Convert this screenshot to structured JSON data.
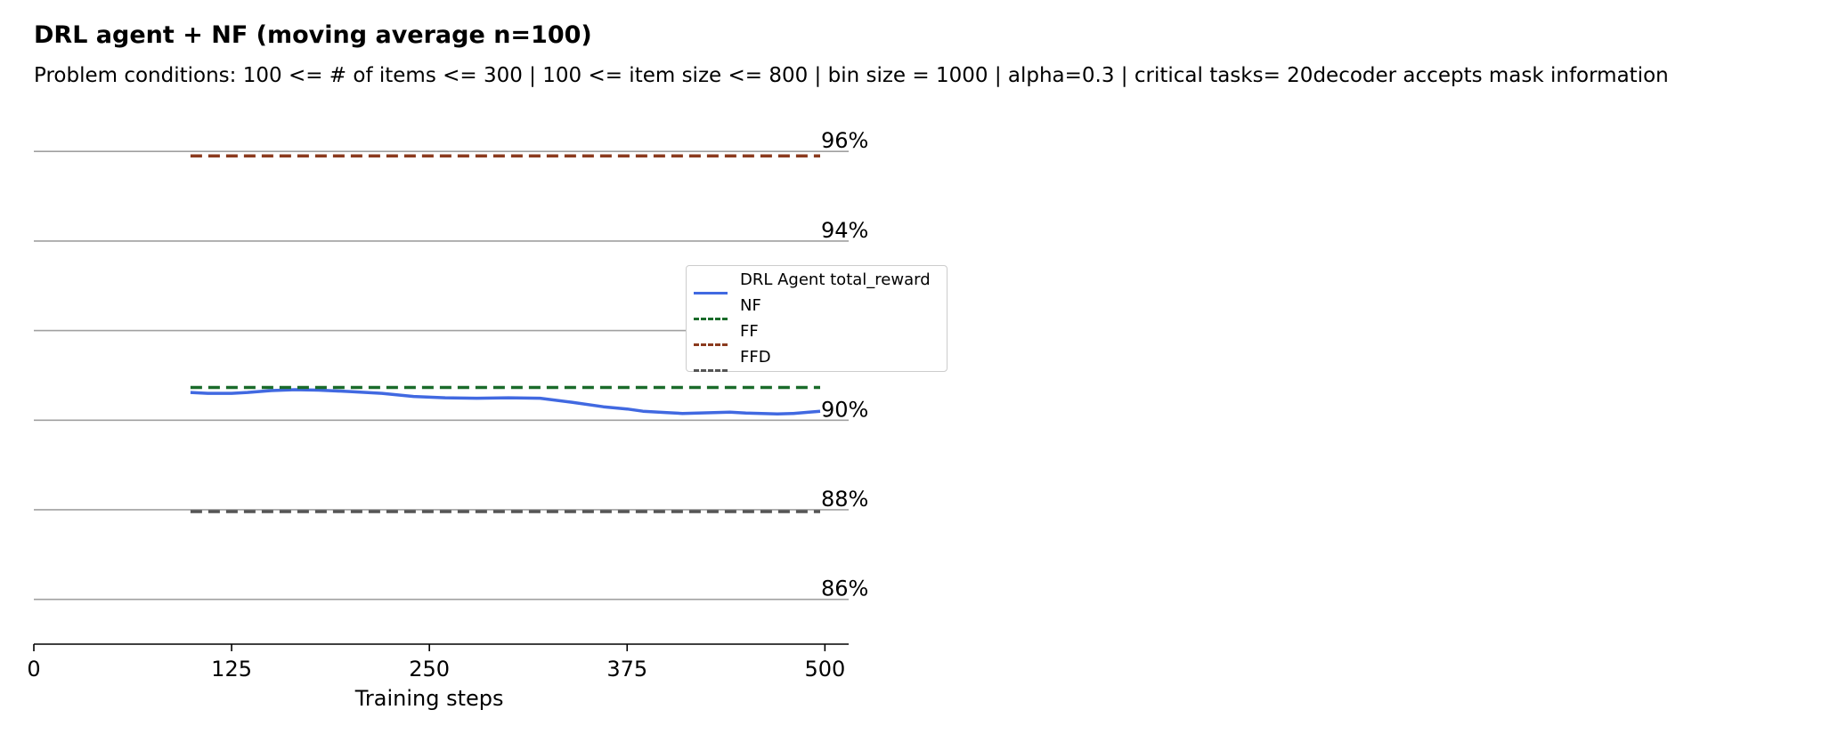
{
  "title": "DRL agent + NF (moving average n=100)",
  "subtitle": "Problem conditions: 100 <= # of items <= 300 | 100 <= item size <= 800 | bin size = 1000 | alpha=0.3 | critical tasks= 20decoder accepts mask information",
  "chart_data": {
    "type": "line",
    "title": "DRL agent + NF (moving average n=100)",
    "subtitle": "Problem conditions: 100 <= # of items <= 300 | 100 <= item size <= 800 | bin size = 1000 | alpha=0.3 | critical tasks= 20decoder accepts mask information",
    "xlabel": "Training steps",
    "ylabel": "",
    "xlim": [
      0,
      515
    ],
    "ylim": [
      85.0,
      96.6
    ],
    "x_ticks": [
      0,
      125,
      250,
      375,
      500
    ],
    "x_tick_labels": [
      "0",
      "125",
      "250",
      "375",
      "500"
    ],
    "y_gridlines": [
      86,
      88,
      90,
      92,
      94,
      96
    ],
    "y_tick_labels": [
      "86%",
      "88%",
      "90%",
      "",
      "94%",
      "96%"
    ],
    "legend_position": "center-right",
    "series": [
      {
        "name": "DRL Agent total_reward",
        "color": "#4169e1",
        "style": "solid",
        "x": [
          99,
          110,
          125,
          135,
          150,
          165,
          180,
          200,
          220,
          240,
          260,
          280,
          300,
          320,
          340,
          360,
          375,
          385,
          400,
          410,
          420,
          430,
          440,
          450,
          460,
          470,
          480,
          490,
          497
        ],
        "y": [
          90.62,
          90.6,
          90.6,
          90.62,
          90.66,
          90.68,
          90.67,
          90.64,
          90.6,
          90.53,
          90.5,
          90.49,
          90.5,
          90.49,
          90.4,
          90.3,
          90.25,
          90.2,
          90.17,
          90.15,
          90.16,
          90.17,
          90.18,
          90.16,
          90.15,
          90.14,
          90.15,
          90.18,
          90.2
        ]
      },
      {
        "name": "NF",
        "color": "#1a6b2a",
        "style": "dashed",
        "x": [
          99,
          497
        ],
        "y": [
          90.73,
          90.73
        ]
      },
      {
        "name": "FF",
        "color": "#8b3a1e",
        "style": "dashed",
        "x": [
          99,
          497
        ],
        "y": [
          95.9,
          95.9
        ]
      },
      {
        "name": "FFD",
        "color": "#555555",
        "style": "dashed",
        "x": [
          99,
          497
        ],
        "y": [
          87.96,
          87.96
        ]
      }
    ]
  }
}
